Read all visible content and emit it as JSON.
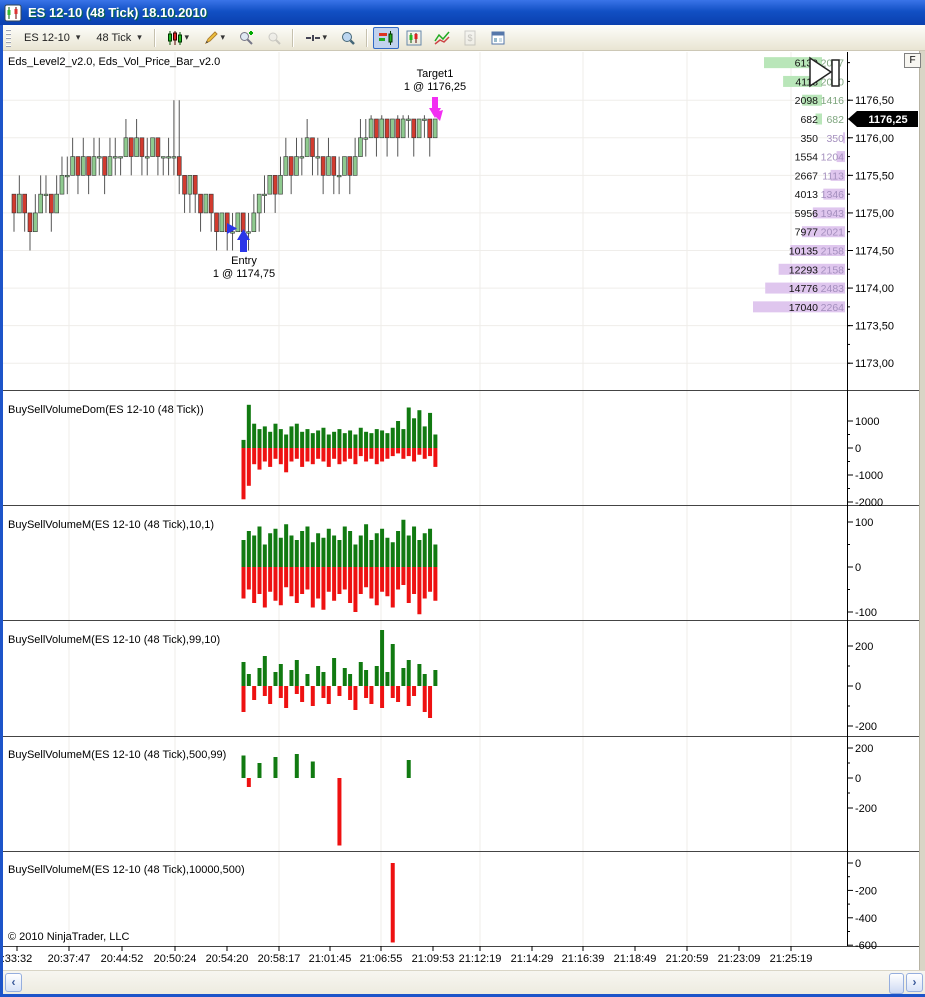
{
  "window": {
    "title": "ES 12-10 (48 Tick)  18.10.2010"
  },
  "toolbar": {
    "instrument": "ES 12-10",
    "interval": "48 Tick",
    "dropdown_arrow": "▾",
    "icons": [
      "chart-style",
      "drawing-tools",
      "zoom-in",
      "zoom-out",
      "crosshair",
      "zoom-window",
      "volume-dom-toggle",
      "chart-panel",
      "indicator-lines",
      "account-performance",
      "properties"
    ]
  },
  "panels": [
    {
      "label": "Eds_Level2_v2.0, Eds_Vol_Price_Bar_v2.0"
    },
    {
      "label": "BuySellVolumeDom(ES 12-10 (48 Tick))",
      "ticks": [
        {
          "v": 1000,
          "t": "1000"
        },
        {
          "v": 0,
          "t": "0"
        },
        {
          "v": -1000,
          "t": "-1000"
        },
        {
          "v": -2000,
          "t": "-2000"
        }
      ]
    },
    {
      "label": "BuySellVolumeM(ES 12-10 (48 Tick),10,1)",
      "ticks": [
        {
          "v": 100,
          "t": "100"
        },
        {
          "v": 0,
          "t": "0"
        },
        {
          "v": -100,
          "t": "-100"
        }
      ]
    },
    {
      "label": "BuySellVolumeM(ES 12-10 (48 Tick),99,10)",
      "ticks": [
        {
          "v": 200,
          "t": "200"
        },
        {
          "v": 0,
          "t": "0"
        },
        {
          "v": -200,
          "t": "-200"
        }
      ]
    },
    {
      "label": "BuySellVolumeM(ES 12-10 (48 Tick),500,99)",
      "ticks": [
        {
          "v": 200,
          "t": "200"
        },
        {
          "v": 0,
          "t": "0"
        },
        {
          "v": -200,
          "t": "-200"
        }
      ]
    },
    {
      "label": "BuySellVolumeM(ES 12-10 (48 Tick),10000,500)",
      "ticks": [
        {
          "v": 0,
          "t": "0"
        },
        {
          "v": -200,
          "t": "-200"
        },
        {
          "v": -400,
          "t": "-400"
        },
        {
          "v": -600,
          "t": "-600"
        }
      ]
    }
  ],
  "annotations": {
    "target": {
      "title": "Target1",
      "detail": "1 @ 1176,25"
    },
    "entry": {
      "title": "Entry",
      "detail": "1 @ 1174,75"
    }
  },
  "price_axis_fix_button": "F",
  "footer": {
    "copyright": "© 2010 NinjaTrader, LLC"
  },
  "scrollbar": {
    "left_arrow": "‹",
    "right_arrow": "›"
  },
  "colors": {
    "candle_up": "#8fca8f",
    "candle_down": "#d23b2f",
    "vol_up": "#117a11",
    "vol_down": "#ee1111",
    "ask_bar": "#b9e6b9",
    "bid_bar": "#dfc6ee",
    "entry_arrow": "#2a36e8",
    "target_arrow": "#f22ef2",
    "grid": "#efedea",
    "titlebar": "#1250c4",
    "active_button": "#c1d2ee"
  },
  "chart_data": {
    "type": "candlestick+volume",
    "main": {
      "title": "Eds_Level2_v2.0, Eds_Vol_Price_Bar_v2.0",
      "ylim": [
        1173.0,
        1177.25
      ],
      "candles": [
        [
          1175.25,
          1175.25,
          1174.75,
          1175.0
        ],
        [
          1175.0,
          1175.5,
          1175.0,
          1175.25
        ],
        [
          1175.25,
          1175.25,
          1174.75,
          1175.0
        ],
        [
          1175.0,
          1175.0,
          1174.5,
          1174.75
        ],
        [
          1174.75,
          1175.25,
          1174.75,
          1175.0
        ],
        [
          1175.0,
          1175.5,
          1175.0,
          1175.25
        ],
        [
          1175.25,
          1175.5,
          1175.0,
          1175.25
        ],
        [
          1175.25,
          1175.25,
          1174.75,
          1175.0
        ],
        [
          1175.0,
          1175.5,
          1175.0,
          1175.25
        ],
        [
          1175.25,
          1175.75,
          1175.25,
          1175.5
        ],
        [
          1175.5,
          1175.75,
          1175.25,
          1175.5
        ],
        [
          1175.5,
          1176.0,
          1175.5,
          1175.75
        ],
        [
          1175.75,
          1175.75,
          1175.25,
          1175.5
        ],
        [
          1175.5,
          1176.0,
          1175.5,
          1175.75
        ],
        [
          1175.75,
          1175.75,
          1175.25,
          1175.5
        ],
        [
          1175.5,
          1176.0,
          1175.5,
          1175.75
        ],
        [
          1175.75,
          1176.0,
          1175.5,
          1175.75
        ],
        [
          1175.75,
          1175.75,
          1175.25,
          1175.5
        ],
        [
          1175.5,
          1176.0,
          1175.5,
          1175.75
        ],
        [
          1175.75,
          1176.0,
          1175.5,
          1175.75
        ],
        [
          1175.75,
          1175.75,
          1175.5,
          1175.75
        ],
        [
          1175.75,
          1176.25,
          1175.75,
          1176.0
        ],
        [
          1176.0,
          1176.0,
          1175.5,
          1175.75
        ],
        [
          1175.75,
          1176.25,
          1175.75,
          1176.0
        ],
        [
          1176.0,
          1176.0,
          1175.5,
          1175.75
        ],
        [
          1175.75,
          1176.0,
          1175.5,
          1175.75
        ],
        [
          1175.75,
          1176.0,
          1175.75,
          1176.0
        ],
        [
          1176.0,
          1176.0,
          1175.5,
          1175.75
        ],
        [
          1175.75,
          1175.75,
          1175.5,
          1175.75
        ],
        [
          1175.75,
          1176.0,
          1175.5,
          1175.75
        ],
        [
          1175.75,
          1176.5,
          1175.5,
          1175.75
        ],
        [
          1175.75,
          1176.5,
          1175.25,
          1175.5
        ],
        [
          1175.5,
          1175.5,
          1175.0,
          1175.25
        ],
        [
          1175.25,
          1175.5,
          1175.0,
          1175.5
        ],
        [
          1175.5,
          1175.5,
          1175.0,
          1175.25
        ],
        [
          1175.25,
          1175.25,
          1174.75,
          1175.0
        ],
        [
          1175.0,
          1175.25,
          1175.0,
          1175.25
        ],
        [
          1175.25,
          1175.25,
          1174.75,
          1175.0
        ],
        [
          1175.0,
          1175.0,
          1174.5,
          1174.75
        ],
        [
          1174.75,
          1175.0,
          1174.75,
          1175.0
        ],
        [
          1175.0,
          1175.0,
          1174.5,
          1174.75
        ],
        [
          1174.75,
          1175.0,
          1174.5,
          1174.75
        ],
        [
          1174.75,
          1175.0,
          1174.75,
          1175.0
        ],
        [
          1175.0,
          1175.0,
          1174.5,
          1174.75
        ],
        [
          1174.75,
          1175.0,
          1174.5,
          1174.75
        ],
        [
          1174.75,
          1175.25,
          1174.75,
          1175.0
        ],
        [
          1175.0,
          1175.25,
          1174.75,
          1175.25
        ],
        [
          1175.25,
          1175.5,
          1175.0,
          1175.25
        ],
        [
          1175.25,
          1175.5,
          1175.25,
          1175.5
        ],
        [
          1175.5,
          1175.5,
          1175.0,
          1175.25
        ],
        [
          1175.25,
          1175.75,
          1175.25,
          1175.5
        ],
        [
          1175.5,
          1176.0,
          1175.5,
          1175.75
        ],
        [
          1175.75,
          1175.75,
          1175.25,
          1175.5
        ],
        [
          1175.5,
          1176.0,
          1175.5,
          1175.75
        ],
        [
          1175.75,
          1176.0,
          1175.5,
          1175.75
        ],
        [
          1175.75,
          1176.25,
          1175.75,
          1176.0
        ],
        [
          1176.0,
          1176.0,
          1175.5,
          1175.75
        ],
        [
          1175.75,
          1176.0,
          1175.5,
          1175.75
        ],
        [
          1175.75,
          1175.75,
          1175.25,
          1175.5
        ],
        [
          1175.5,
          1176.0,
          1175.5,
          1175.75
        ],
        [
          1175.75,
          1175.75,
          1175.25,
          1175.5
        ],
        [
          1175.5,
          1175.75,
          1175.25,
          1175.5
        ],
        [
          1175.5,
          1175.75,
          1175.5,
          1175.75
        ],
        [
          1175.75,
          1175.75,
          1175.25,
          1175.5
        ],
        [
          1175.5,
          1176.0,
          1175.5,
          1175.75
        ],
        [
          1175.75,
          1176.25,
          1175.75,
          1176.0
        ],
        [
          1176.0,
          1176.25,
          1175.75,
          1176.0
        ],
        [
          1176.0,
          1176.3,
          1176.0,
          1176.25
        ],
        [
          1176.25,
          1176.25,
          1175.75,
          1176.0
        ],
        [
          1176.0,
          1176.3,
          1176.0,
          1176.25
        ],
        [
          1176.25,
          1176.25,
          1175.75,
          1176.0
        ],
        [
          1176.0,
          1176.25,
          1176.0,
          1176.25
        ],
        [
          1176.25,
          1176.3,
          1175.75,
          1176.0
        ],
        [
          1176.0,
          1176.3,
          1176.0,
          1176.25
        ],
        [
          1176.25,
          1176.3,
          1176.0,
          1176.25
        ],
        [
          1176.25,
          1176.25,
          1175.75,
          1176.0
        ],
        [
          1176.0,
          1176.25,
          1176.0,
          1176.25
        ],
        [
          1176.25,
          1176.3,
          1176.0,
          1176.25
        ],
        [
          1176.25,
          1176.25,
          1175.75,
          1176.0
        ],
        [
          1176.0,
          1176.25,
          1176.0,
          1176.25
        ]
      ]
    },
    "price_axis": {
      "ticks": [
        {
          "p": 1176.5,
          "t": "1176,50"
        },
        {
          "p": 1176.0,
          "t": "1176,00"
        },
        {
          "p": 1175.5,
          "t": "1175,50"
        },
        {
          "p": 1175.0,
          "t": "1175,00"
        },
        {
          "p": 1174.5,
          "t": "1174,50"
        },
        {
          "p": 1174.0,
          "t": "1174,00"
        },
        {
          "p": 1173.5,
          "t": "1173,50"
        },
        {
          "p": 1173.0,
          "t": "1173,00"
        }
      ],
      "gridlines": [
        1176.5,
        1176.0,
        1175.5,
        1175.0,
        1174.5,
        1174.0,
        1173.5,
        1173.0
      ],
      "current_price": 1176.25,
      "current_label": "1176,25"
    },
    "ladder": {
      "rows": [
        {
          "price": 1177.0,
          "v1": "6139",
          "v2": "2017",
          "side": "ask"
        },
        {
          "price": 1176.75,
          "v1": "4118",
          "v2": "2020",
          "side": "ask"
        },
        {
          "price": 1176.5,
          "v1": "2098",
          "v2": "1416",
          "side": "ask"
        },
        {
          "price": 1176.25,
          "v1": "682",
          "v2": "682",
          "side": "ask"
        },
        {
          "price": 1176.0,
          "v1": "350",
          "v2": "350",
          "side": "bid"
        },
        {
          "price": 1175.75,
          "v1": "1554",
          "v2": "1204",
          "side": "bid"
        },
        {
          "price": 1175.5,
          "v1": "2667",
          "v2": "1113",
          "side": "bid"
        },
        {
          "price": 1175.25,
          "v1": "4013",
          "v2": "1346",
          "side": "bid"
        },
        {
          "price": 1175.0,
          "v1": "5956",
          "v2": "1943",
          "side": "bid"
        },
        {
          "price": 1174.75,
          "v1": "7977",
          "v2": "2021",
          "side": "bid"
        },
        {
          "price": 1174.5,
          "v1": "10135",
          "v2": "2158",
          "side": "bid"
        },
        {
          "price": 1174.25,
          "v1": "12293",
          "v2": "2158",
          "side": "bid"
        },
        {
          "price": 1174.0,
          "v1": "14776",
          "v2": "2483",
          "side": "bid"
        },
        {
          "price": 1173.75,
          "v1": "17040",
          "v2": "2264",
          "side": "bid"
        }
      ]
    },
    "volume_panels": [
      {
        "name": "BuySellVolumeDom",
        "buys": [
          300,
          1600,
          900,
          700,
          800,
          600,
          900,
          700,
          500,
          800,
          900,
          600,
          700,
          550,
          650,
          750,
          500,
          600,
          700,
          550,
          650,
          500,
          750,
          600,
          550,
          700,
          650,
          550,
          750,
          1000,
          700,
          1500,
          1100,
          1400,
          800,
          1300,
          500
        ],
        "sells": [
          -1900,
          -1400,
          -600,
          -800,
          -500,
          -700,
          -400,
          -600,
          -900,
          -500,
          -400,
          -700,
          -500,
          -600,
          -400,
          -500,
          -700,
          -400,
          -600,
          -500,
          -400,
          -600,
          -300,
          -500,
          -400,
          -600,
          -500,
          -400,
          -300,
          -200,
          -400,
          -300,
          -500,
          -250,
          -400,
          -300,
          -700
        ]
      },
      {
        "name": "BuySellVolumeM(10,1)",
        "buys": [
          60,
          80,
          70,
          90,
          50,
          75,
          85,
          65,
          95,
          70,
          60,
          80,
          90,
          55,
          75,
          65,
          85,
          70,
          60,
          90,
          80,
          50,
          70,
          95,
          60,
          75,
          85,
          65,
          55,
          80,
          105,
          70,
          90,
          60,
          75,
          85,
          50
        ],
        "sells": [
          -70,
          -50,
          -80,
          -60,
          -90,
          -55,
          -75,
          -85,
          -45,
          -65,
          -80,
          -60,
          -50,
          -90,
          -70,
          -95,
          -55,
          -75,
          -60,
          -50,
          -80,
          -100,
          -60,
          -45,
          -70,
          -85,
          -55,
          -65,
          -90,
          -50,
          -40,
          -80,
          -60,
          -105,
          -70,
          -55,
          -75
        ]
      },
      {
        "name": "BuySellVolumeM(99,10)",
        "buys": [
          120,
          60,
          0,
          90,
          150,
          0,
          70,
          110,
          0,
          80,
          130,
          0,
          60,
          0,
          100,
          70,
          0,
          140,
          0,
          90,
          60,
          0,
          120,
          80,
          0,
          100,
          280,
          70,
          210,
          0,
          90,
          130,
          0,
          110,
          60,
          0,
          80
        ],
        "sells": [
          -130,
          0,
          -70,
          0,
          -50,
          -90,
          0,
          -60,
          -110,
          0,
          -40,
          -80,
          0,
          -100,
          0,
          -60,
          -90,
          0,
          -50,
          0,
          -70,
          -120,
          0,
          -60,
          -90,
          0,
          -110,
          0,
          -60,
          -80,
          0,
          -100,
          -50,
          0,
          -130,
          -160,
          0
        ]
      },
      {
        "name": "BuySellVolumeM(500,99)",
        "bars": [
          {
            "i": 0,
            "v": 150
          },
          {
            "i": 1,
            "v": -60
          },
          {
            "i": 3,
            "v": 100
          },
          {
            "i": 6,
            "v": 140
          },
          {
            "i": 10,
            "v": 160
          },
          {
            "i": 13,
            "v": 110
          },
          {
            "i": 18,
            "v": -450
          },
          {
            "i": 31,
            "v": 120
          }
        ]
      },
      {
        "name": "BuySellVolumeM(10000,500)",
        "bars": [
          {
            "i": 28,
            "v": -580
          }
        ]
      }
    ],
    "time_axis": {
      "labels": [
        ":33:32",
        "20:37:47",
        "20:44:52",
        "20:50:24",
        "20:54:20",
        "20:58:17",
        "21:01:45",
        "21:06:55",
        "21:09:53",
        "21:12:19",
        "21:14:29",
        "21:16:39",
        "21:18:49",
        "21:20:59",
        "21:23:09",
        "21:25:19"
      ],
      "x": [
        17,
        69,
        122,
        175,
        227,
        279,
        330,
        381,
        433,
        480,
        532,
        583,
        635,
        687,
        739,
        791
      ]
    }
  }
}
